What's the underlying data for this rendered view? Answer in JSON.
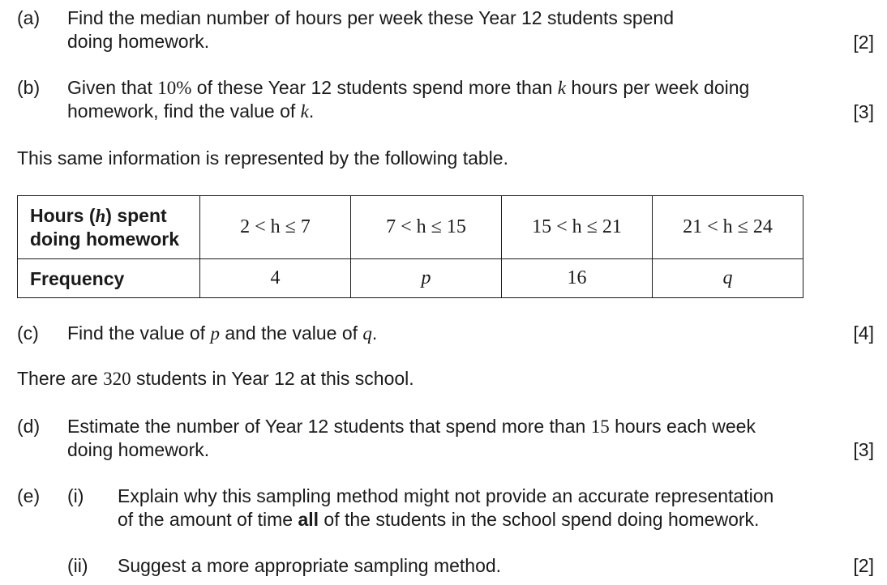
{
  "part_a": {
    "label": "(a)",
    "line1": "Find the median number of hours per week these Year 12 students spend",
    "line2": "doing homework.",
    "marks": "[2]"
  },
  "part_b": {
    "label": "(b)",
    "t1": "Given that ",
    "math1": "10%",
    "t2": " of these Year 12 students spend more than ",
    "var": "k",
    "t3": " hours per week doing",
    "line2_text": "homework, find the value of ",
    "line2_var": "k",
    "line2_end": ".",
    "marks": "[3]"
  },
  "intro_text": "This same information is represented by the following table.",
  "table": {
    "row1_header_part1": "Hours (",
    "row1_header_var": "h",
    "row1_header_part2": ") spent",
    "row1_header_line2": "doing homework",
    "intervals": [
      "2 < h ≤ 7",
      "7 < h ≤ 15",
      "15 < h ≤ 21",
      "21 < h ≤ 24"
    ],
    "row2_header": "Frequency",
    "frequencies": [
      "4",
      "p",
      "16",
      "q"
    ]
  },
  "part_c": {
    "label": "(c)",
    "t1": "Find the value of ",
    "v1": "p",
    "t2": " and the value of ",
    "v2": "q",
    "t3": ".",
    "marks": "[4]"
  },
  "students_text": {
    "t1": "There are ",
    "num": "320",
    "t2": " students in Year 12 at this school."
  },
  "part_d": {
    "label": "(d)",
    "t1": "Estimate the number of Year 12 students that spend more than ",
    "num": "15",
    "t2": " hours each week",
    "line2": "doing homework.",
    "marks": "[3]"
  },
  "part_e": {
    "label": "(e)",
    "sub_i_label": "(i)",
    "sub_i_line1": "Explain why this sampling method might not provide an accurate representation",
    "sub_i_line2_a": "of the amount of time ",
    "sub_i_line2_bold": "all",
    "sub_i_line2_b": " of the students in the school spend doing homework.",
    "sub_ii_label": "(ii)",
    "sub_ii_text": "Suggest a more appropriate sampling method.",
    "marks": "[2]"
  }
}
